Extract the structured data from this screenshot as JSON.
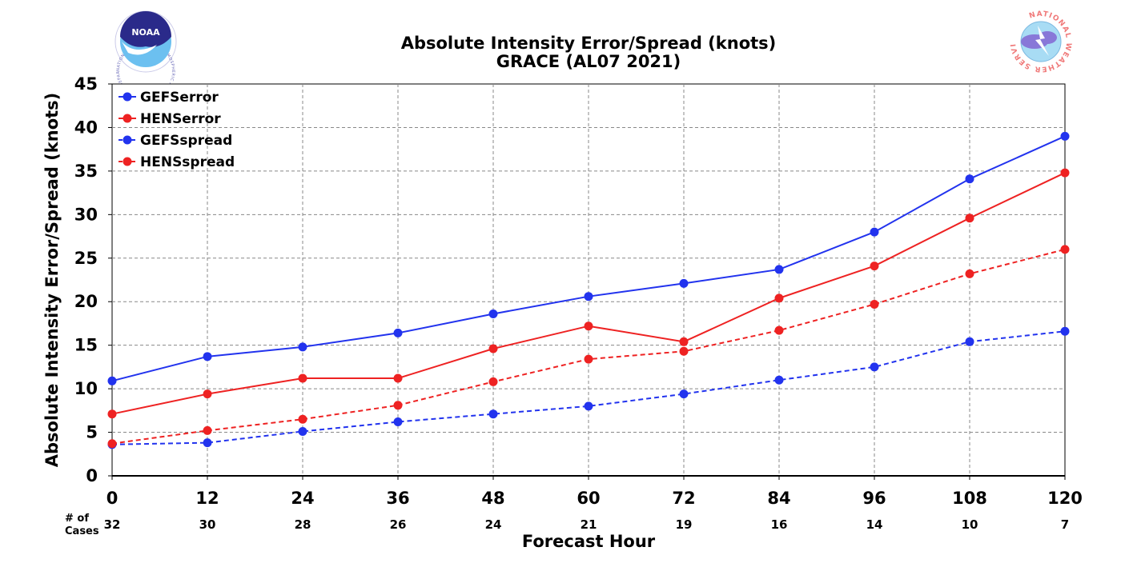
{
  "chart_data": {
    "type": "line",
    "title": "Absolute Intensity Error/Spread (knots)",
    "subtitle": "GRACE (AL07 2021)",
    "xlabel": "Forecast Hour",
    "ylabel": "Absolute Intensity Error/Spread (knots)",
    "x": [
      0,
      12,
      24,
      36,
      48,
      60,
      72,
      84,
      96,
      108,
      120
    ],
    "xlim": [
      0,
      120
    ],
    "ylim": [
      0,
      45
    ],
    "yticks": [
      0,
      5,
      10,
      15,
      20,
      25,
      30,
      35,
      40,
      45
    ],
    "grid": true,
    "legend_position": "top-left",
    "cases_label_line1": "# of",
    "cases_label_line2": "Cases",
    "cases": [
      32,
      30,
      28,
      26,
      24,
      21,
      19,
      16,
      14,
      10,
      7
    ],
    "series": [
      {
        "name": "GEFSerror",
        "color": "#2233ee",
        "dash": "solid",
        "values": [
          10.9,
          13.7,
          14.8,
          16.4,
          18.6,
          20.6,
          22.1,
          23.7,
          28.0,
          34.1,
          39.0
        ]
      },
      {
        "name": "HENSerror",
        "color": "#ee2222",
        "dash": "solid",
        "values": [
          7.1,
          9.4,
          11.2,
          11.2,
          14.6,
          17.2,
          15.4,
          20.4,
          24.1,
          29.6,
          34.8
        ]
      },
      {
        "name": "GEFSspread",
        "color": "#2233ee",
        "dash": "dashed",
        "values": [
          3.6,
          3.8,
          5.1,
          6.2,
          7.1,
          8.0,
          9.4,
          11.0,
          12.5,
          15.4,
          16.6
        ]
      },
      {
        "name": "HENSspread",
        "color": "#ee2222",
        "dash": "dashed",
        "values": [
          3.7,
          5.2,
          6.5,
          8.1,
          10.8,
          13.4,
          14.3,
          16.7,
          19.7,
          23.2,
          26.0
        ]
      }
    ]
  },
  "logos": {
    "left": {
      "icon": "noaa-logo-icon",
      "text": "NOAA",
      "ring_text": "NATIONAL OCEANIC AND ATMOSPHERIC ADMINISTRATION · U.S. DEPARTMENT OF COMMERCE"
    },
    "right": {
      "icon": "nws-logo-icon",
      "ring_text": "NATIONAL WEATHER SERVICE"
    }
  }
}
